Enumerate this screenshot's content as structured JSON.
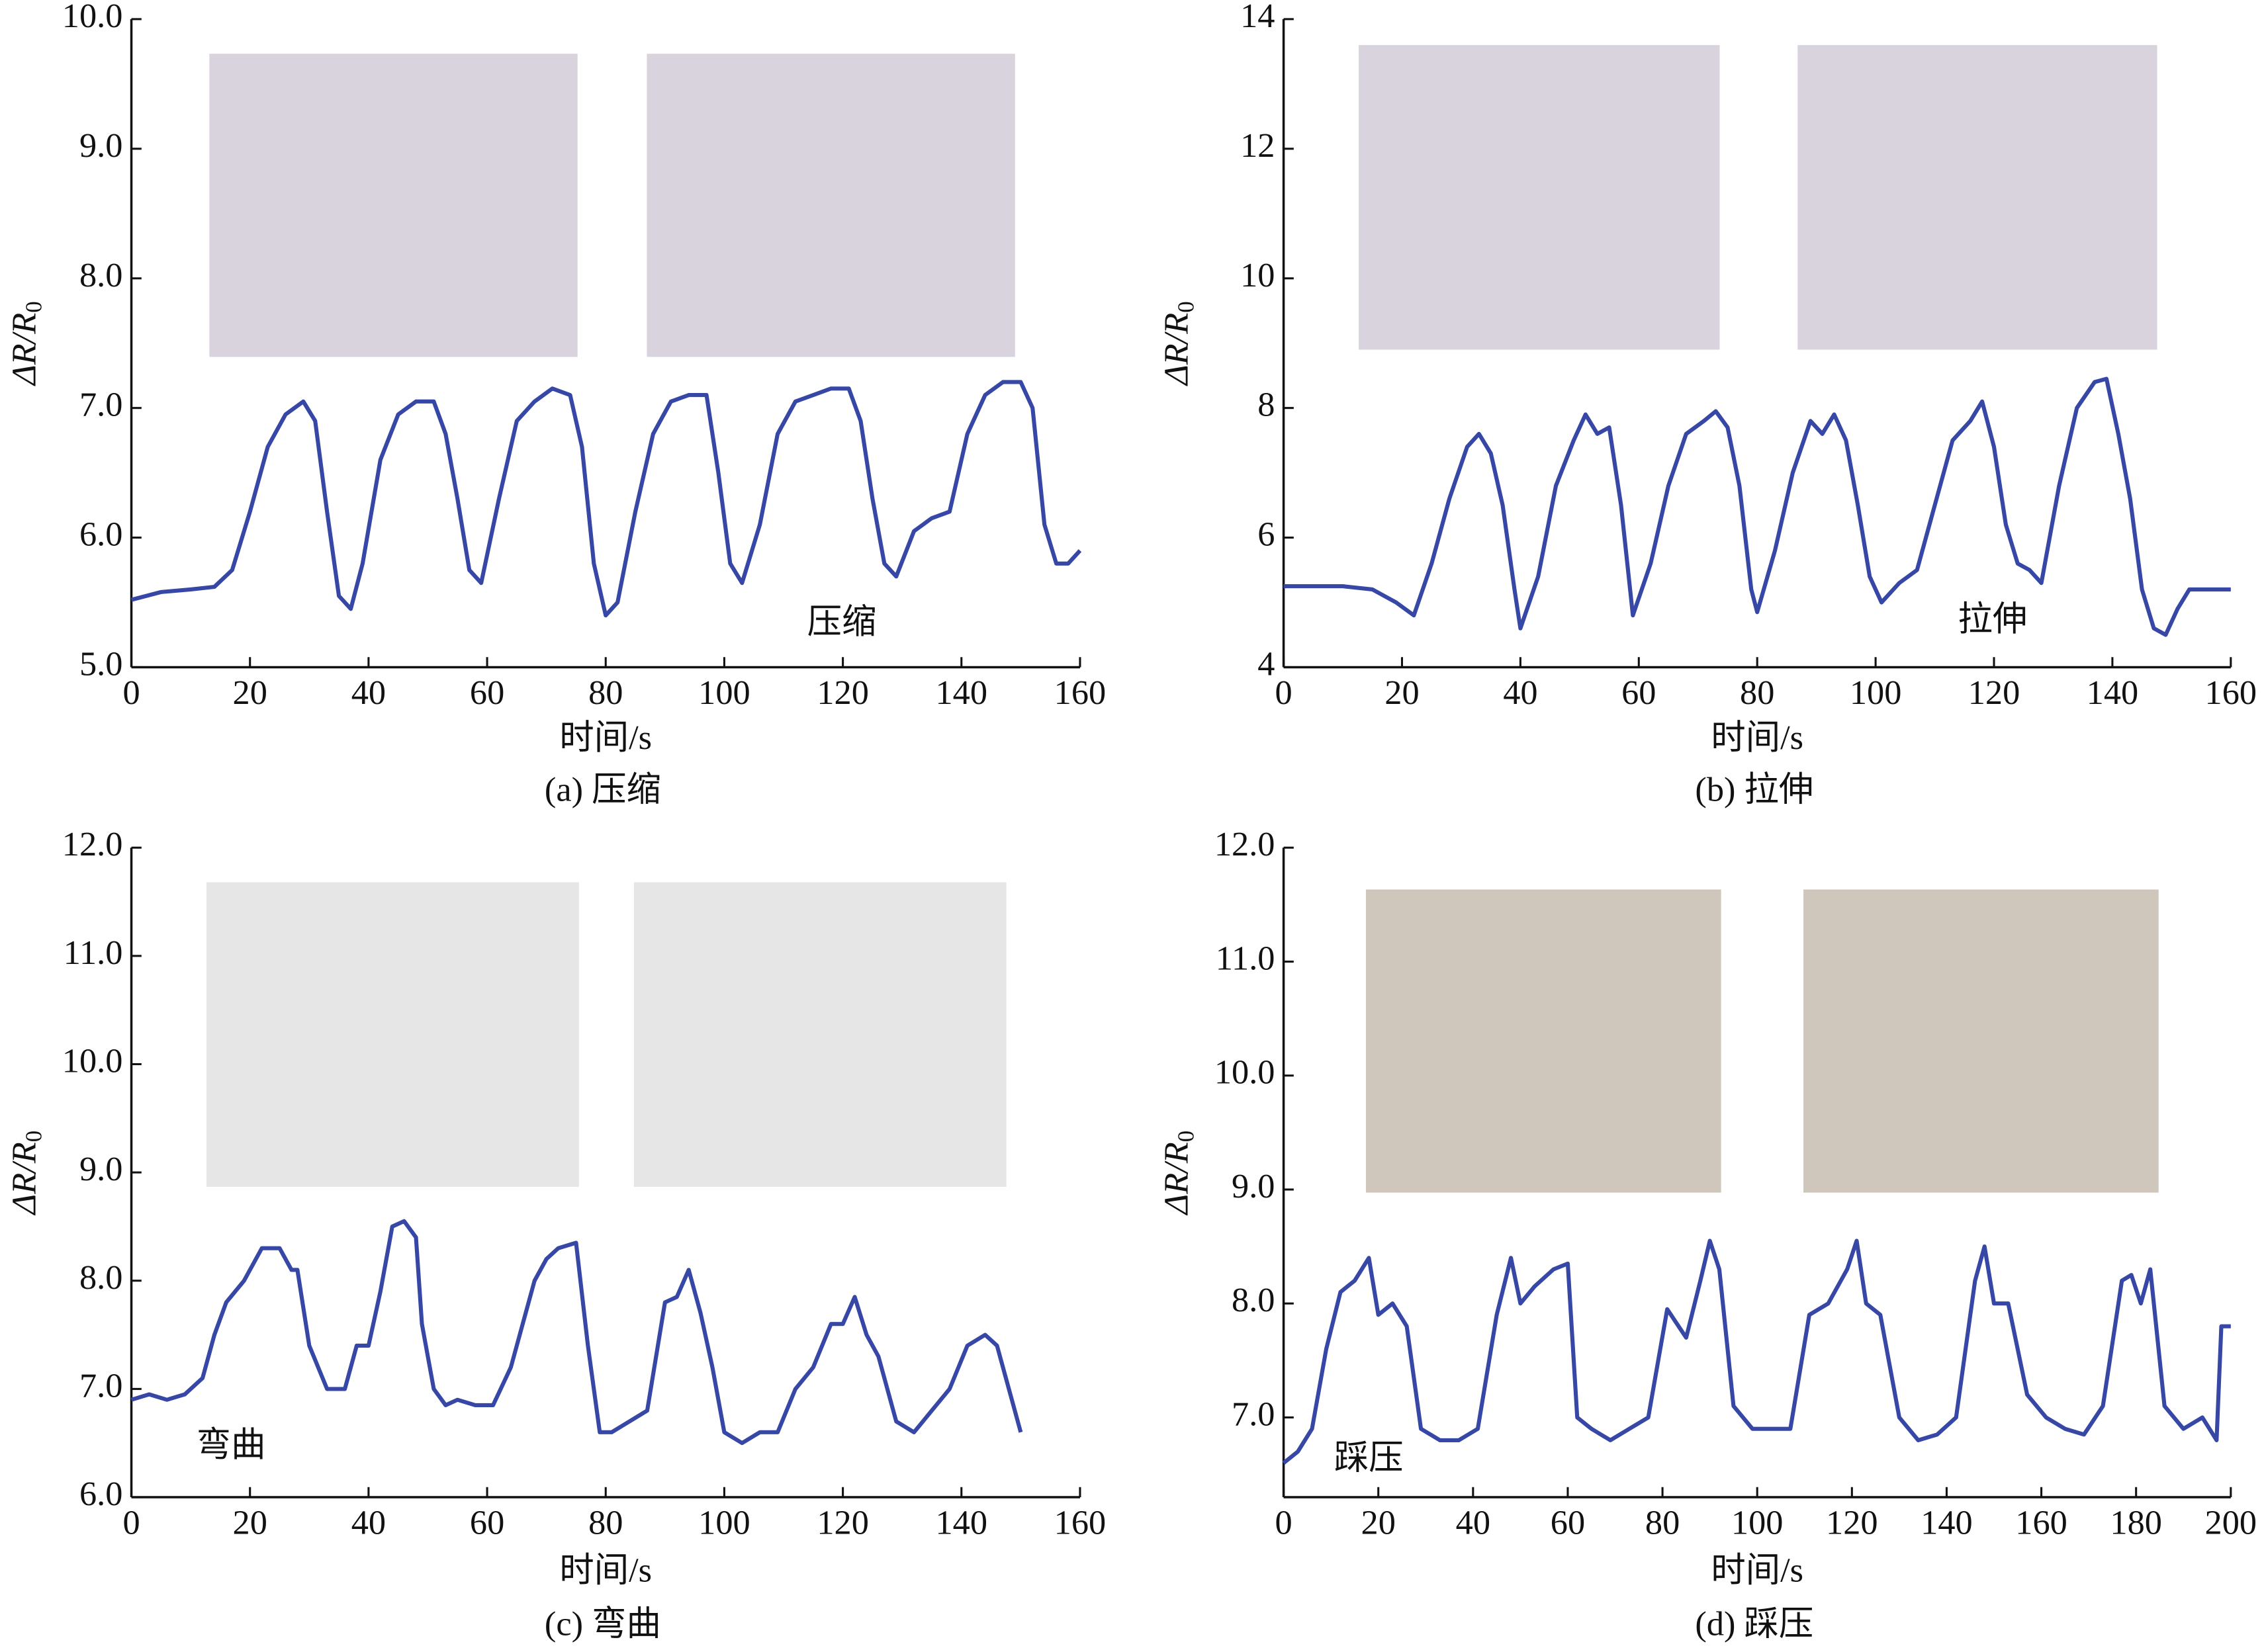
{
  "chart_data": [
    {
      "type": "line",
      "caption": "(a) 压缩",
      "annotation": "压缩",
      "xlabel": "时间/s",
      "ylabel": "ΔR/R",
      "ylabel_sub": "0",
      "xlim": [
        0,
        160
      ],
      "ylim": [
        5,
        10
      ],
      "xticks": [
        0,
        20,
        40,
        60,
        80,
        100,
        120,
        140,
        160
      ],
      "yticks": [
        {
          "value": 5,
          "label": "5.0"
        },
        {
          "value": 6,
          "label": "6.0"
        },
        {
          "value": 7,
          "label": "7.0"
        },
        {
          "value": 8,
          "label": "8.0"
        },
        {
          "value": 9,
          "label": "9.0"
        },
        {
          "value": 10,
          "label": "10.0"
        }
      ],
      "x": [
        0,
        5,
        10,
        14,
        17,
        20,
        23,
        26,
        29,
        31,
        33,
        35,
        37,
        39,
        42,
        45,
        48,
        51,
        53,
        55,
        57,
        59,
        62,
        65,
        68,
        71,
        74,
        76,
        78,
        80,
        82,
        85,
        88,
        91,
        94,
        97,
        99,
        101,
        103,
        106,
        109,
        112,
        115,
        118,
        121,
        123,
        125,
        127,
        129,
        132,
        135,
        138,
        141,
        144,
        147,
        150,
        152,
        154,
        156,
        158,
        160
      ],
      "series": [
        {
          "color": "#3647a6",
          "values": [
            5.52,
            5.58,
            5.6,
            5.62,
            5.75,
            6.2,
            6.7,
            6.95,
            7.05,
            6.9,
            6.2,
            5.55,
            5.45,
            5.8,
            6.6,
            6.95,
            7.05,
            7.05,
            6.8,
            6.3,
            5.75,
            5.65,
            6.3,
            6.9,
            7.05,
            7.15,
            7.1,
            6.7,
            5.8,
            5.4,
            5.5,
            6.2,
            6.8,
            7.05,
            7.1,
            7.1,
            6.5,
            5.8,
            5.65,
            6.1,
            6.8,
            7.05,
            7.1,
            7.15,
            7.15,
            6.9,
            6.3,
            5.8,
            5.7,
            6.05,
            6.15,
            6.2,
            6.8,
            7.1,
            7.2,
            7.2,
            7.0,
            6.1,
            5.8,
            5.8,
            5.9
          ]
        }
      ]
    },
    {
      "type": "line",
      "caption": "(b) 拉伸",
      "annotation": "拉伸",
      "xlabel": "时间/s",
      "ylabel": "ΔR/R",
      "ylabel_sub": "0",
      "xlim": [
        0,
        160
      ],
      "ylim": [
        4,
        14
      ],
      "xticks": [
        0,
        20,
        40,
        60,
        80,
        100,
        120,
        140,
        160
      ],
      "yticks": [
        4,
        6,
        8,
        10,
        12,
        14
      ],
      "x": [
        0,
        5,
        10,
        15,
        19,
        22,
        25,
        28,
        31,
        33,
        35,
        37,
        39,
        40,
        43,
        46,
        49,
        51,
        53,
        55,
        57,
        59,
        62,
        65,
        68,
        71,
        73,
        75,
        77,
        79,
        80,
        83,
        86,
        89,
        91,
        93,
        95,
        97,
        99,
        101,
        104,
        107,
        110,
        113,
        116,
        118,
        120,
        122,
        124,
        126,
        128,
        131,
        134,
        137,
        139,
        141,
        143,
        145,
        147,
        149,
        151,
        153,
        156,
        160
      ],
      "series": [
        {
          "color": "#3647a6",
          "values": [
            5.25,
            5.25,
            5.25,
            5.2,
            5.0,
            4.8,
            5.6,
            6.6,
            7.4,
            7.6,
            7.3,
            6.5,
            5.2,
            4.6,
            5.4,
            6.8,
            7.5,
            7.9,
            7.6,
            7.7,
            6.5,
            4.8,
            5.6,
            6.8,
            7.6,
            7.8,
            7.95,
            7.7,
            6.8,
            5.2,
            4.85,
            5.8,
            7.0,
            7.8,
            7.6,
            7.9,
            7.5,
            6.5,
            5.4,
            5.0,
            5.3,
            5.5,
            6.5,
            7.5,
            7.8,
            8.1,
            7.4,
            6.2,
            5.6,
            5.5,
            5.3,
            6.8,
            8.0,
            8.4,
            8.45,
            7.6,
            6.6,
            5.2,
            4.6,
            4.5,
            4.9,
            5.2,
            5.2,
            5.2
          ]
        }
      ]
    },
    {
      "type": "line",
      "caption": "(c) 弯曲",
      "annotation": "弯曲",
      "xlabel": "时间/s",
      "ylabel": "ΔR/R",
      "ylabel_sub": "0",
      "xlim": [
        0,
        160
      ],
      "ylim": [
        6,
        12
      ],
      "xticks": [
        0,
        20,
        40,
        60,
        80,
        100,
        120,
        140,
        160
      ],
      "yticks": [
        {
          "value": 6,
          "label": "6.0"
        },
        {
          "value": 7,
          "label": "7.0"
        },
        {
          "value": 8,
          "label": "8.0"
        },
        {
          "value": 9,
          "label": "9.0"
        },
        {
          "value": 10,
          "label": "10.0"
        },
        {
          "value": 11,
          "label": "11.0"
        },
        {
          "value": 12,
          "label": "12.0"
        }
      ],
      "x": [
        0,
        3,
        6,
        9,
        12,
        14,
        16,
        19,
        22,
        25,
        27,
        28,
        30,
        33,
        36,
        38,
        40,
        42,
        44,
        46,
        48,
        49,
        51,
        53,
        55,
        58,
        61,
        64,
        66,
        68,
        70,
        72,
        75,
        77,
        79,
        81,
        84,
        87,
        90,
        92,
        94,
        96,
        98,
        100,
        103,
        106,
        109,
        112,
        115,
        118,
        120,
        122,
        124,
        126,
        129,
        132,
        135,
        138,
        141,
        144,
        146,
        148,
        150
      ],
      "series": [
        {
          "color": "#3647a6",
          "values": [
            6.9,
            6.95,
            6.9,
            6.95,
            7.1,
            7.5,
            7.8,
            8.0,
            8.3,
            8.3,
            8.1,
            8.1,
            7.4,
            7.0,
            7.0,
            7.4,
            7.4,
            7.9,
            8.5,
            8.55,
            8.4,
            7.6,
            7.0,
            6.85,
            6.9,
            6.85,
            6.85,
            7.2,
            7.6,
            8.0,
            8.2,
            8.3,
            8.35,
            7.4,
            6.6,
            6.6,
            6.7,
            6.8,
            7.8,
            7.85,
            8.1,
            7.7,
            7.2,
            6.6,
            6.5,
            6.6,
            6.6,
            7.0,
            7.2,
            7.6,
            7.6,
            7.85,
            7.5,
            7.3,
            6.7,
            6.6,
            6.8,
            7.0,
            7.4,
            7.5,
            7.4,
            7.0,
            6.6
          ]
        }
      ]
    },
    {
      "type": "line",
      "caption": "(d) 踩压",
      "annotation": "踩压",
      "xlabel": "时间/s",
      "ylabel": "ΔR/R",
      "ylabel_sub": "0",
      "xlim": [
        0,
        200
      ],
      "ylim": [
        6.3,
        12
      ],
      "xticks": [
        0,
        20,
        40,
        60,
        80,
        100,
        120,
        140,
        160,
        180,
        200
      ],
      "yticks": [
        {
          "value": 7,
          "label": "7.0"
        },
        {
          "value": 8,
          "label": "8.0"
        },
        {
          "value": 9,
          "label": "9.0"
        },
        {
          "value": 10,
          "label": "10.0"
        },
        {
          "value": 11,
          "label": "11.0"
        },
        {
          "value": 12,
          "label": "12.0"
        }
      ],
      "x": [
        0,
        3,
        6,
        9,
        12,
        15,
        18,
        20,
        23,
        26,
        29,
        33,
        37,
        41,
        45,
        48,
        50,
        53,
        57,
        60,
        62,
        65,
        69,
        73,
        77,
        81,
        85,
        88,
        90,
        92,
        95,
        99,
        103,
        107,
        111,
        115,
        119,
        121,
        123,
        126,
        130,
        134,
        138,
        142,
        146,
        148,
        150,
        153,
        157,
        161,
        165,
        169,
        173,
        177,
        179,
        181,
        183,
        186,
        190,
        194,
        197,
        198,
        200
      ],
      "series": [
        {
          "color": "#3647a6",
          "values": [
            6.6,
            6.7,
            6.9,
            7.6,
            8.1,
            8.2,
            8.4,
            7.9,
            8.0,
            7.8,
            6.9,
            6.8,
            6.8,
            6.9,
            7.9,
            8.4,
            8.0,
            8.15,
            8.3,
            8.35,
            7.0,
            6.9,
            6.8,
            6.9,
            7.0,
            7.95,
            7.7,
            8.2,
            8.55,
            8.3,
            7.1,
            6.9,
            6.9,
            6.9,
            7.9,
            8.0,
            8.3,
            8.55,
            8.0,
            7.9,
            7.0,
            6.8,
            6.85,
            7.0,
            8.2,
            8.5,
            8.0,
            8.0,
            7.2,
            7.0,
            6.9,
            6.85,
            7.1,
            8.2,
            8.25,
            8.0,
            8.3,
            7.1,
            6.9,
            7.0,
            6.8,
            7.8,
            7.8
          ]
        }
      ]
    }
  ]
}
